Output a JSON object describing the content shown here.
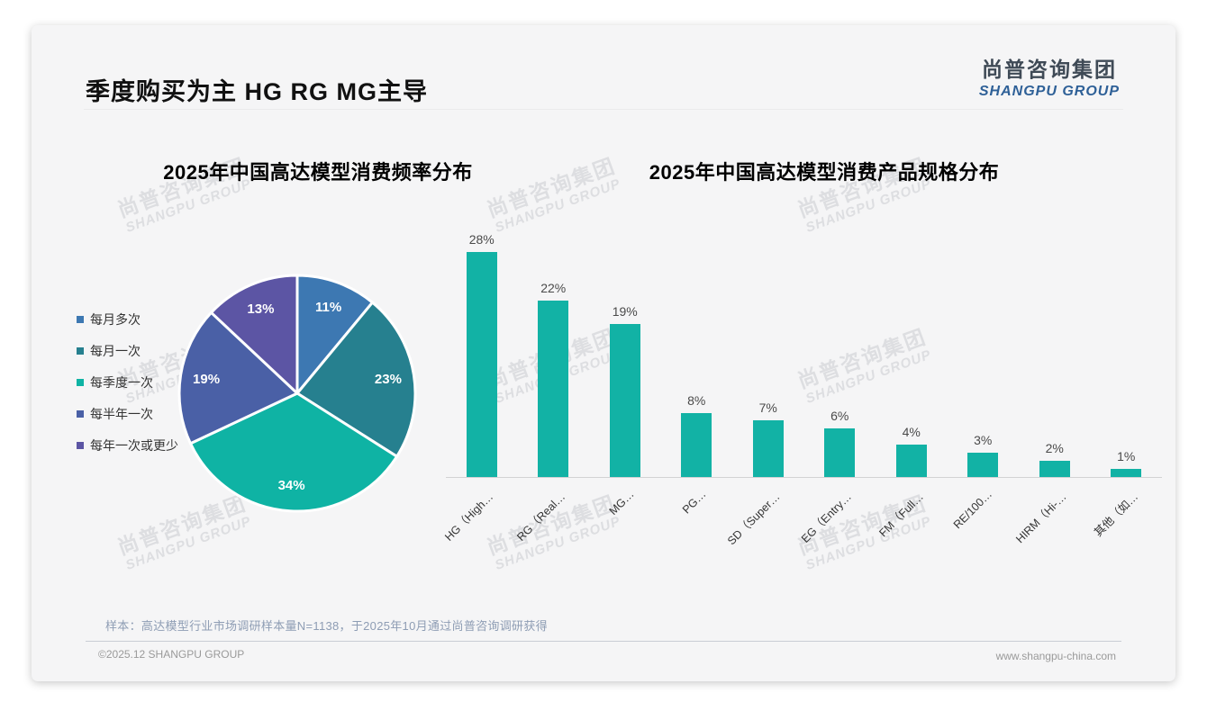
{
  "page": {
    "title": "季度购买为主 HG RG MG主导",
    "logo": {
      "cn": "尚普咨询集团",
      "en": "SHANGPU GROUP"
    },
    "watermark": {
      "cn": "尚普咨询集团",
      "en": "SHANGPU GROUP"
    },
    "footer": {
      "note": "样本：高达模型行业市场调研样本量N=1138，于2025年10月通过尚普咨询调研获得",
      "copyright": "©2025.12 SHANGPU GROUP",
      "website": "www.shangpu-china.com"
    }
  },
  "chart_data": [
    {
      "type": "pie",
      "title": "2025年中国高达模型消费频率分布",
      "categories": [
        "每月多次",
        "每月一次",
        "每季度一次",
        "每半年一次",
        "每年一次或更少"
      ],
      "values": [
        11,
        23,
        34,
        19,
        13
      ],
      "value_labels": [
        "11%",
        "23%",
        "34%",
        "19%",
        "13%"
      ],
      "colors": [
        "#3d78b2",
        "#26808f",
        "#0fb3a4",
        "#4a60a6",
        "#5c55a4"
      ],
      "start_angle_deg": 0,
      "direction": "clockwise",
      "legend_position": "left",
      "slice_border_color": "#ffffff"
    },
    {
      "type": "bar",
      "title": "2025年中国高达模型消费产品规格分布",
      "categories": [
        "HG（High…",
        "RG（Real…",
        "MG…",
        "PG…",
        "SD（Super…",
        "EG（Entry…",
        "FM（Full…",
        "RE/100…",
        "HIRM（Hi-…",
        "其他（如…"
      ],
      "values": [
        28,
        22,
        19,
        8,
        7,
        6,
        4,
        3,
        2,
        1
      ],
      "value_labels": [
        "28%",
        "22%",
        "19%",
        "8%",
        "7%",
        "6%",
        "4%",
        "3%",
        "2%",
        "1%"
      ],
      "bar_color": "#12b2a5",
      "ylim": [
        0,
        30
      ],
      "grid": false,
      "x_tick_rotation_deg": 45,
      "xlabel": "",
      "ylabel": ""
    }
  ]
}
